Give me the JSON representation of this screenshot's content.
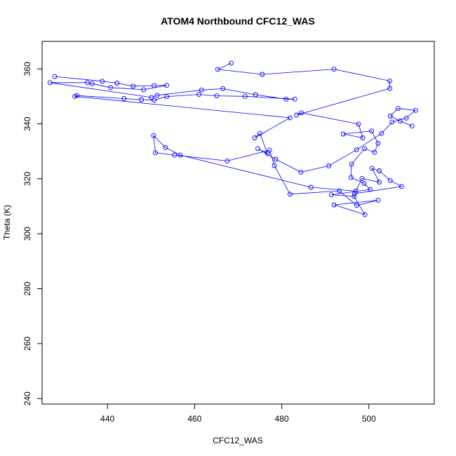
{
  "chart_data": {
    "type": "scatter",
    "title": "ATOM4 Northbound CFC12_WAS",
    "xlabel": "CFC12_WAS",
    "ylabel": "Theta (K)",
    "xlim": [
      425,
      515
    ],
    "ylim": [
      238,
      370
    ],
    "xticks": [
      440,
      460,
      480,
      500
    ],
    "yticks": [
      240,
      260,
      280,
      300,
      320,
      340,
      360
    ],
    "grid": false,
    "legend": "none",
    "marker": "open-circle",
    "connected": true,
    "color": "#0000ff",
    "series": [
      {
        "x": [
          468.4,
          465.3,
          475.5,
          492.0,
          504.8,
          504.8,
          483.4,
          484.5,
          497.6,
          498.6,
          494.1,
          500.6,
          502.1,
          501.3,
          499.0,
          496.0,
          495.9,
          498.9,
          500.3,
          491.4,
          496.6,
          499.1,
          492.0,
          502.1,
          497.2,
          493.2,
          481.9,
          478.3,
          477.2,
          467.5,
          455.4,
          451.0,
          450.6,
          453.3,
          456.7,
          486.7,
          497.0,
          498.4,
          502.4,
          500.7,
          502.4,
          504.9,
          507.5,
          496.7
        ],
        "y": [
          362.1,
          359.8,
          358.0,
          359.9,
          355.6,
          352.9,
          343.2,
          344.0,
          339.9,
          334.9,
          336.3,
          337.4,
          332.9,
          329.6,
          331.0,
          325.3,
          320.5,
          318.3,
          316.1,
          314.2,
          313.6,
          307.0,
          310.5,
          312.2,
          310.3,
          315.6,
          314.4,
          324.8,
          330.4,
          326.5,
          328.6,
          329.5,
          335.7,
          331.4,
          328.6,
          316.9,
          315.5,
          320.1,
          318.8,
          323.8,
          322.9,
          319.4,
          317.2,
          314.6
        ]
      },
      {
        "x": [
          427.9,
          438.8,
          442.2,
          445.9,
          450.7,
          453.6,
          448.3,
          440.7,
          436.5,
          435.4,
          426.8,
          450.1,
          451.4,
          461.6,
          466.5,
          474.0,
          481.0,
          483.0,
          471.6,
          465.1,
          461.0,
          453.6,
          450.7,
          447.8,
          443.8,
          433.0,
          432.5,
          481.9,
          473.8,
          475.0,
          476.7,
          474.5,
          478.6,
          484.4,
          490.8,
          497.2,
          502.9,
          505.3,
          508.6,
          510.7,
          506.7,
          504.9,
          507.2,
          509.9
        ],
        "y": [
          357.2,
          355.5,
          354.8,
          353.7,
          353.9,
          354.0,
          352.4,
          353.2,
          354.6,
          355.0,
          355.0,
          349.6,
          350.4,
          352.3,
          352.8,
          350.6,
          349.0,
          349.0,
          350.0,
          350.2,
          350.7,
          349.9,
          348.6,
          348.8,
          349.2,
          350.3,
          350.0,
          342.2,
          334.9,
          336.5,
          329.2,
          331.0,
          327.1,
          322.4,
          324.7,
          330.6,
          336.5,
          340.6,
          342.1,
          344.9,
          345.6,
          342.8,
          341.0,
          339.2
        ]
      }
    ]
  }
}
